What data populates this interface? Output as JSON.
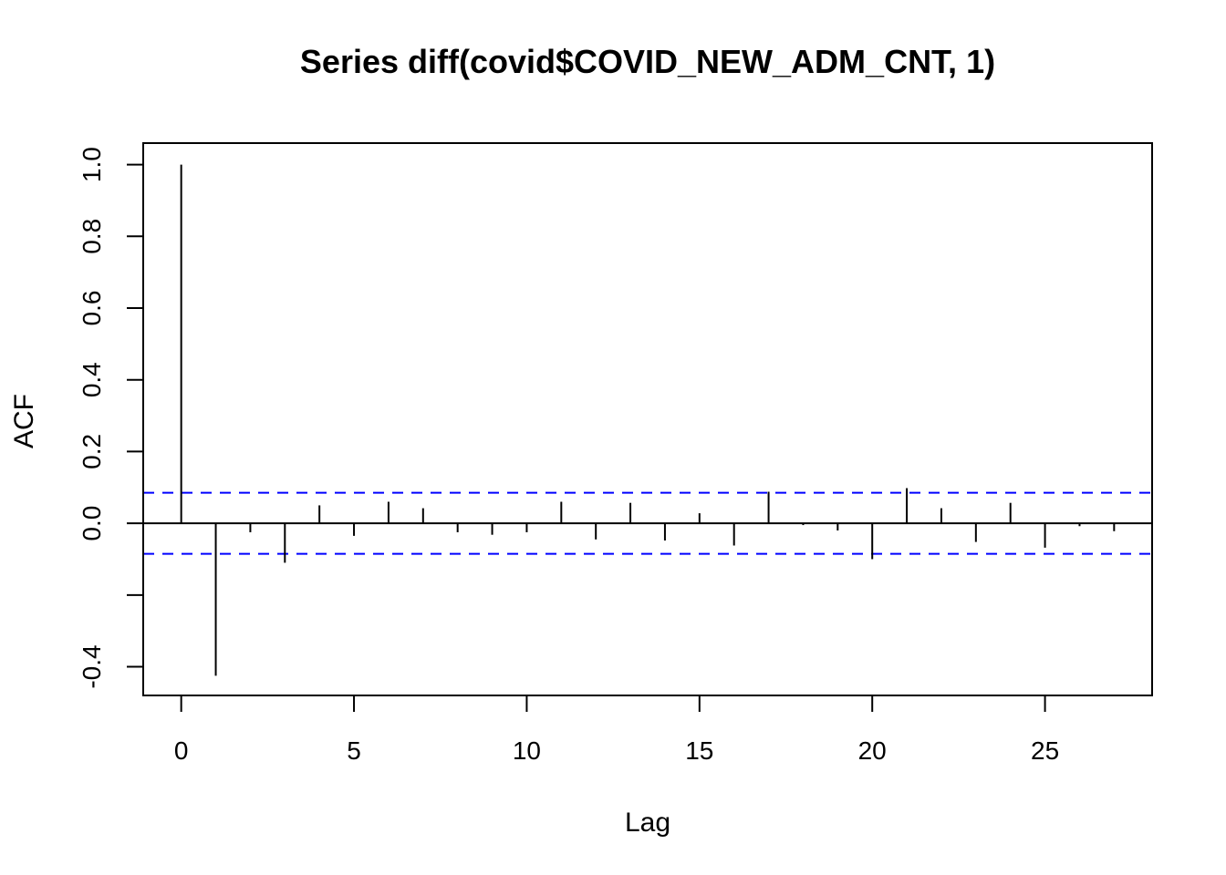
{
  "chart_data": {
    "type": "bar",
    "title": "Series  diff(covid$COVID_NEW_ADM_CNT, 1)",
    "xlabel": "Lag",
    "ylabel": "ACF",
    "xlim": [
      -1.1,
      28.1
    ],
    "ylim": [
      -0.48,
      1.06
    ],
    "x_ticks": [
      0,
      5,
      10,
      15,
      20,
      25
    ],
    "x_tick_labels": [
      "0",
      "5",
      "10",
      "15",
      "20",
      "25"
    ],
    "y_ticks": [
      -0.4,
      -0.2,
      0.0,
      0.2,
      0.4,
      0.6,
      0.8,
      1.0
    ],
    "y_tick_labels": [
      "-0.4",
      "",
      "0.0",
      "0.2",
      "0.4",
      "0.6",
      "0.8",
      "1.0"
    ],
    "lags": [
      0,
      1,
      2,
      3,
      4,
      5,
      6,
      7,
      8,
      9,
      10,
      11,
      12,
      13,
      14,
      15,
      16,
      17,
      18,
      19,
      20,
      21,
      22,
      23,
      24,
      25,
      26,
      27
    ],
    "values": [
      1.0,
      -0.425,
      -0.025,
      -0.11,
      0.05,
      -0.035,
      0.06,
      0.042,
      -0.025,
      -0.032,
      -0.025,
      0.06,
      -0.045,
      0.057,
      -0.048,
      0.028,
      -0.062,
      0.088,
      -0.005,
      -0.02,
      -0.1,
      0.098,
      0.042,
      -0.052,
      0.057,
      -0.068,
      -0.008,
      -0.022
    ],
    "confidence_bound": 0.085,
    "zero_line": 0,
    "colors": {
      "bars": "#000000",
      "confidence": "#0000ff",
      "axis": "#000000"
    },
    "grid": false,
    "legend": "none"
  }
}
